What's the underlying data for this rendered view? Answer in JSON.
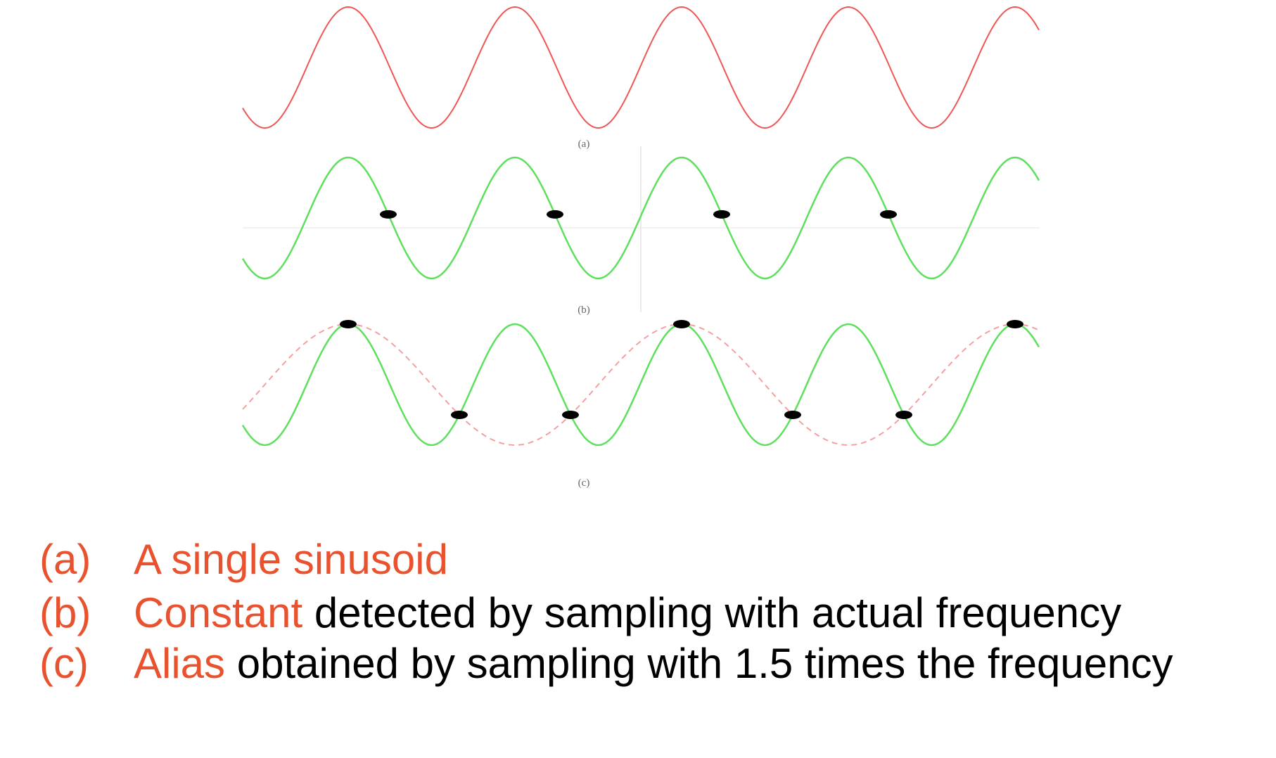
{
  "diagram": {
    "colors": {
      "signal": "#ef5656",
      "signal_faint": "#f5a0a0",
      "sampled": "#5ee05e",
      "sample_dot": "#000000",
      "axis": "#e4e4e4",
      "caption_highlight": "#e8522e",
      "caption_text": "#000000",
      "panel_label": "#666666"
    },
    "panels": [
      {
        "id": "a",
        "label": "(a)",
        "wave": {
          "cycles": 4.7,
          "color_key": "signal",
          "style": "solid"
        },
        "samples": []
      },
      {
        "id": "b",
        "label": "(b)",
        "wave": {
          "cycles": 4.7,
          "color_key": "sampled",
          "style": "solid"
        },
        "samples_per_cycle": 1,
        "sample_count": 4,
        "detected": "constant"
      },
      {
        "id": "c",
        "label": "(c)",
        "wave": {
          "cycles": 4.7,
          "color_key": "sampled",
          "style": "solid"
        },
        "alias": {
          "cycles": 2.35,
          "color_key": "signal_faint",
          "style": "dashed-then-solid"
        },
        "samples_per_cycle": 1.5,
        "sample_count": 7
      }
    ]
  },
  "captions": [
    {
      "marker": "(a)",
      "highlight": "A single sinusoid",
      "rest": ""
    },
    {
      "marker": "(b)",
      "highlight": "Constant",
      "rest": " detected by sampling with actual frequency"
    },
    {
      "marker": "(c)",
      "highlight": "Alias",
      "rest": " obtained by sampling with 1.5 times the frequency"
    }
  ]
}
